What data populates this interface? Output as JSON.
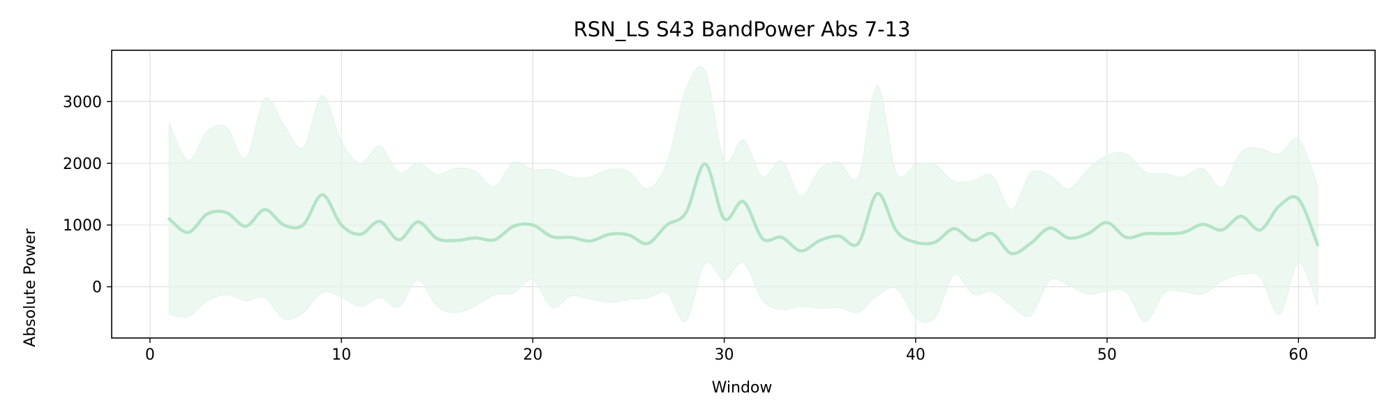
{
  "chart_data": {
    "type": "line",
    "title": "RSN_LS S43 BandPower Abs 7-13",
    "xlabel": "Window",
    "ylabel": "Absolute Power",
    "xlim": [
      -2,
      64
    ],
    "ylim": [
      -830,
      3830
    ],
    "xticks": [
      0,
      10,
      20,
      30,
      40,
      50,
      60
    ],
    "yticks": [
      0,
      1000,
      2000,
      3000
    ],
    "grid": true,
    "colors": {
      "line": "#b4e3c6",
      "band": "#e2f4e8",
      "axis": "#000000",
      "grid": "#e0e0e0"
    },
    "series": [
      {
        "x": [
          1,
          2,
          3,
          4,
          5,
          6,
          7,
          8,
          9,
          10,
          11,
          12,
          13,
          14,
          15,
          16,
          17,
          18,
          19,
          20,
          21,
          22,
          23,
          24,
          25,
          26,
          27,
          28,
          29,
          30,
          31,
          32,
          33,
          34,
          35,
          36,
          37,
          38,
          39,
          40,
          41,
          42,
          43,
          44,
          45,
          46,
          47,
          48,
          49,
          50,
          51,
          52,
          53,
          54,
          55,
          56,
          57,
          58,
          59,
          60,
          61
        ],
        "y": [
          1100,
          880,
          1180,
          1200,
          980,
          1250,
          1000,
          1000,
          1490,
          1000,
          850,
          1060,
          760,
          1050,
          780,
          750,
          790,
          760,
          980,
          1000,
          810,
          800,
          740,
          850,
          840,
          700,
          1000,
          1200,
          1990,
          1100,
          1380,
          780,
          800,
          580,
          750,
          820,
          700,
          1510,
          900,
          720,
          720,
          940,
          750,
          860,
          540,
          700,
          950,
          790,
          860,
          1040,
          800,
          860,
          860,
          880,
          1010,
          920,
          1140,
          920,
          1310,
          1420,
          680
        ],
        "upper": [
          2650,
          2050,
          2520,
          2580,
          2080,
          3050,
          2620,
          2250,
          3100,
          2350,
          2000,
          2280,
          1850,
          2000,
          1820,
          1920,
          1870,
          1620,
          2020,
          1900,
          1900,
          1780,
          1780,
          1900,
          1870,
          1590,
          2000,
          3200,
          3500,
          2050,
          2380,
          1780,
          2040,
          1470,
          1900,
          2020,
          1780,
          3260,
          1840,
          1980,
          1980,
          1710,
          1720,
          1800,
          1250,
          1840,
          1800,
          1590,
          1900,
          2130,
          2150,
          1860,
          1830,
          1780,
          1920,
          1610,
          2180,
          2240,
          2150,
          2390,
          1650
        ],
        "lower": [
          -450,
          -480,
          -230,
          -130,
          -230,
          -180,
          -520,
          -420,
          -90,
          -170,
          -320,
          -180,
          -330,
          110,
          -320,
          -420,
          -310,
          -130,
          -100,
          110,
          -340,
          -150,
          -200,
          -250,
          -210,
          -180,
          -100,
          -560,
          380,
          110,
          390,
          -220,
          -370,
          -320,
          -350,
          -340,
          -410,
          -140,
          -30,
          -500,
          -510,
          190,
          -120,
          -80,
          -310,
          -470,
          100,
          20,
          -120,
          -70,
          -90,
          -570,
          -100,
          -80,
          -120,
          90,
          200,
          150,
          -450,
          380,
          -300
        ]
      }
    ]
  }
}
